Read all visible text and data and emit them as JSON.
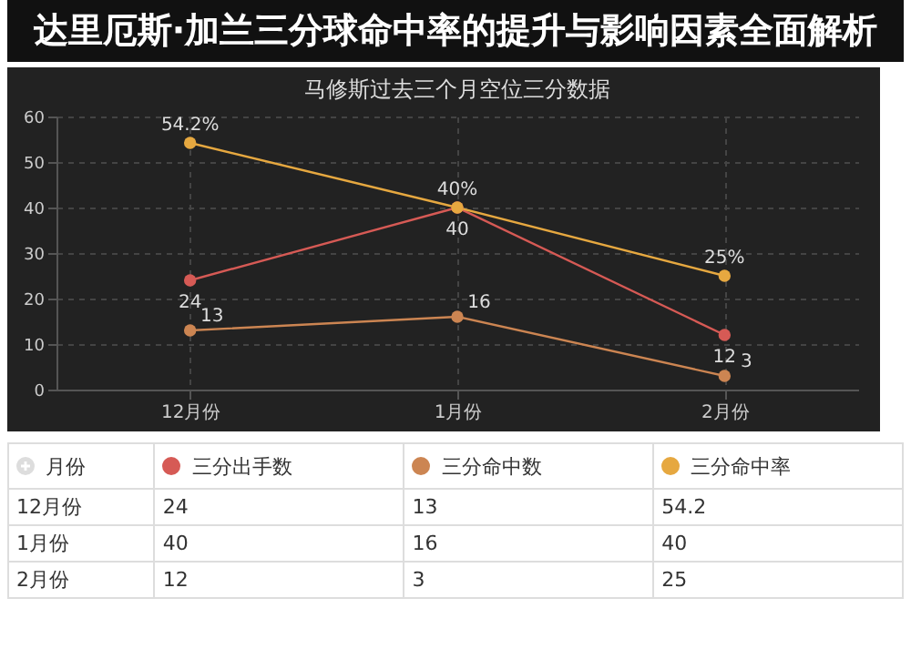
{
  "chart_data": [
    {
      "type": "line",
      "title": "马修斯过去三个月空位三分数据",
      "annotations": [
        "达里厄斯·加兰三分球命中率的提升与影响因素全面解析"
      ],
      "categories": [
        "12月份",
        "1月份",
        "2月份"
      ],
      "ylim": [
        0,
        60
      ],
      "yticks": [
        0,
        10,
        20,
        30,
        40,
        50,
        60
      ],
      "grid": true,
      "marker": "circle",
      "series": [
        {
          "color": "#d65a55",
          "values": [
            24,
            40,
            12
          ],
          "value_labels": [
            "24",
            "40",
            "12"
          ]
        },
        {
          "color": "#cc8552",
          "values": [
            13,
            16,
            3
          ],
          "value_labels": [
            "13",
            "16",
            "3"
          ]
        },
        {
          "color": "#e6a840",
          "values": [
            54.2,
            40,
            25
          ],
          "value_labels": [
            "54.2%",
            "40%",
            "25%"
          ]
        }
      ]
    },
    {
      "type": "other",
      "legend_title": "月份",
      "categories": [
        "12月份",
        "1月份",
        "2月份"
      ],
      "data_labels": true,
      "legend": "top",
      "series": [
        {
          "name": "三分出手数",
          "color": "#d65a55",
          "values": [
            24,
            40,
            12
          ]
        },
        {
          "name": "三分命中数",
          "color": "#cc8552",
          "values": [
            13,
            16,
            3
          ]
        },
        {
          "name": "三分命中率",
          "color": "#e6a840",
          "values": [
            54.2,
            40,
            25
          ]
        }
      ]
    }
  ]
}
